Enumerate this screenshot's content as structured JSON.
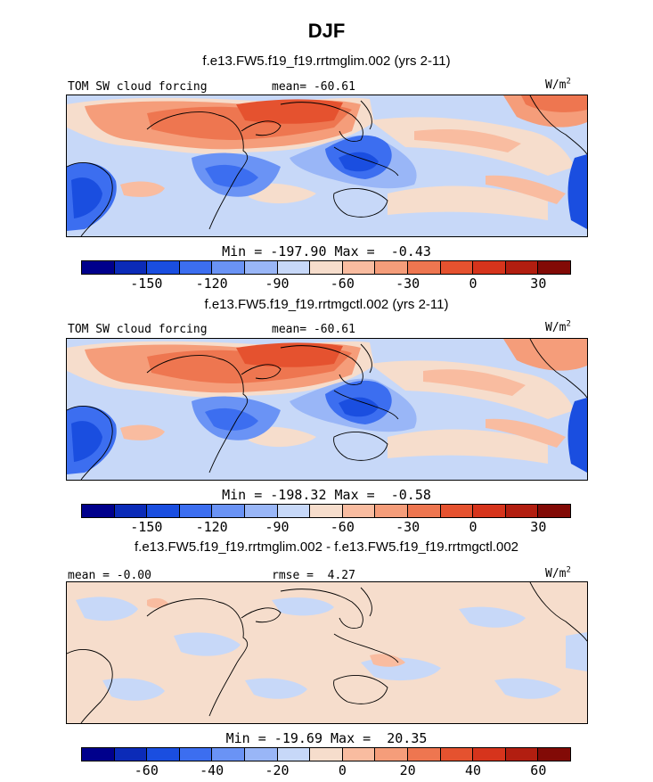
{
  "figure": {
    "title": "DJF"
  },
  "colorbar_colors": [
    "#00008c",
    "#0b2bb8",
    "#1a4ee0",
    "#3c6ef0",
    "#6a93f5",
    "#99b6f7",
    "#c7d8f8",
    "#f6ddcc",
    "#f9bca0",
    "#f59d7a",
    "#ee7650",
    "#e5522f",
    "#d6341c",
    "#b21e10",
    "#820a06"
  ],
  "panels": [
    {
      "id": "rrtmglim",
      "case_title": "f.e13.FW5.f19_f19.rrtmglim.002 (yrs 2-11)",
      "variable": "TOM SW cloud forcing",
      "stat_center": "mean= -60.61",
      "units": "W/m",
      "units_sup": "2",
      "minmax": "Min = -197.90 Max =  -0.43",
      "colorbar_ticks": [
        "-150",
        "-120",
        "-90",
        "-60",
        "-30",
        "0",
        "30"
      ]
    },
    {
      "id": "rrtmgctl",
      "case_title": "f.e13.FW5.f19_f19.rrtmgctl.002 (yrs 2-11)",
      "variable": "TOM SW cloud forcing",
      "stat_center": "mean= -60.61",
      "units": "W/m",
      "units_sup": "2",
      "minmax": "Min = -198.32 Max =  -0.58",
      "colorbar_ticks": [
        "-150",
        "-120",
        "-90",
        "-60",
        "-30",
        "0",
        "30"
      ]
    },
    {
      "id": "difference",
      "case_title": "f.e13.FW5.f19_f19.rrtmglim.002 - f.e13.FW5.f19_f19.rrtmgctl.002",
      "stat_left": "mean = -0.00",
      "stat_center": "rmse =  4.27",
      "units": "W/m",
      "units_sup": "2",
      "minmax": "Min = -19.69 Max =  20.35",
      "colorbar_ticks": [
        "-60",
        "-40",
        "-20",
        "0",
        "20",
        "40",
        "60"
      ]
    }
  ]
}
